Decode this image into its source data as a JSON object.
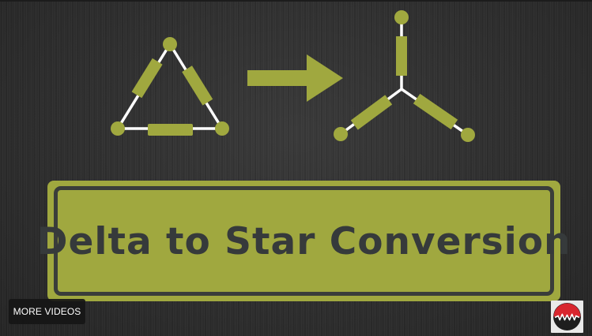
{
  "video": {
    "title": "Delta to Star Conversion"
  },
  "overlay": {
    "more_videos_label": "MORE VIDEOS"
  },
  "icons": {
    "delta": "delta-network-icon",
    "arrow": "right-arrow-icon",
    "star": "star-network-icon",
    "logo": "channel-logo-icon"
  },
  "colors": {
    "accent": "#a0a83f",
    "wire": "#ffffff",
    "text_dark": "#363a3b",
    "background": "#303030",
    "logo_red": "#d8262e"
  }
}
